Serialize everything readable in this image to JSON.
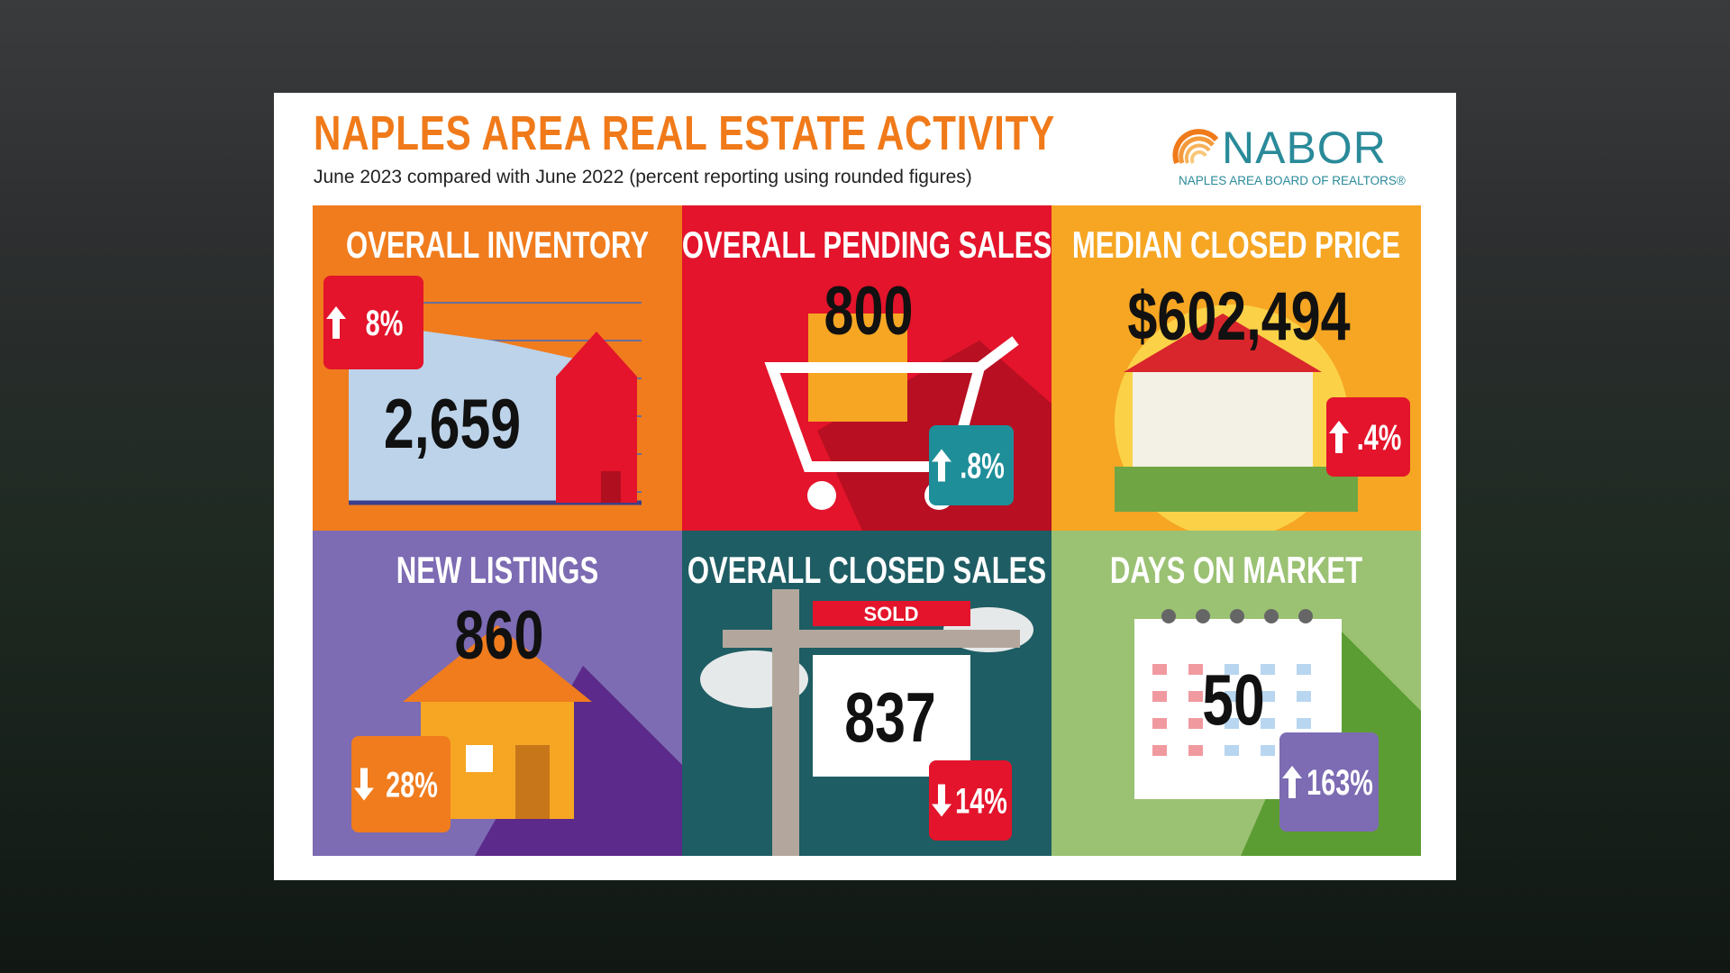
{
  "header": {
    "title": "NAPLES AREA REAL ESTATE ACTIVITY",
    "subtitle": "June 2023 compared with June 2022 (percent reporting using rounded figures)"
  },
  "logo": {
    "name": "NABOR",
    "tagline": "NAPLES AREA BOARD OF REALTORS®"
  },
  "tiles": [
    {
      "title": "OVERALL INVENTORY",
      "value": "2,659",
      "change": "8%"
    },
    {
      "title": "OVERALL PENDING SALES",
      "value": "800",
      "change": ".8%"
    },
    {
      "title": "MEDIAN CLOSED PRICE",
      "value": "$602,494",
      "change": ".4%"
    },
    {
      "title": "NEW LISTINGS",
      "value": "860",
      "change": "28%"
    },
    {
      "title": "OVERALL CLOSED SALES",
      "value": "837",
      "change": "14%",
      "sign": "SOLD"
    },
    {
      "title": "DAYS ON MARKET",
      "value": "50",
      "change": "163%"
    }
  ]
}
